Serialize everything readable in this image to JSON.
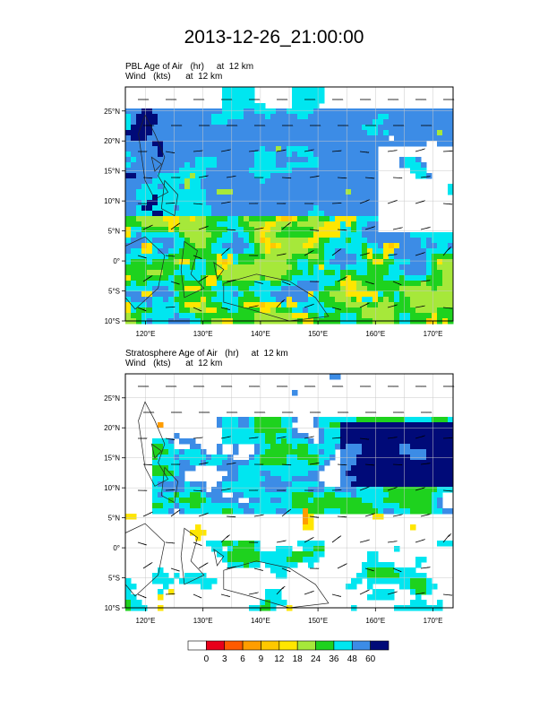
{
  "title": "2013-12-26_21:00:00",
  "panels": [
    {
      "line1": "PBL Age of Air   (hr)     at  12 km",
      "line2": "Wind   (kts)      at  12 km",
      "pattern": "pbl"
    },
    {
      "line1": "Stratosphere Age of Air   (hr)     at  12 km",
      "line2": "Wind   (kts)      at  12 km",
      "pattern": "strat"
    }
  ],
  "lat_labels": [
    "25°N",
    "20°N",
    "15°N",
    "10°N",
    "5°N",
    "0°",
    "5°S",
    "10°S"
  ],
  "lon_labels": [
    "120°E",
    "130°E",
    "140°E",
    "150°E",
    "160°E",
    "170°E"
  ],
  "colorbar": {
    "labels": [
      "0",
      "3",
      "6",
      "9",
      "12",
      "18",
      "24",
      "36",
      "48",
      "60"
    ],
    "colors": [
      "#ffffff",
      "#e8001a",
      "#ff5a00",
      "#ff9d00",
      "#ffc800",
      "#ffe600",
      "#a6e83a",
      "#1ed21e",
      "#00e6f0",
      "#3c8ce6",
      "#000a78"
    ]
  }
}
